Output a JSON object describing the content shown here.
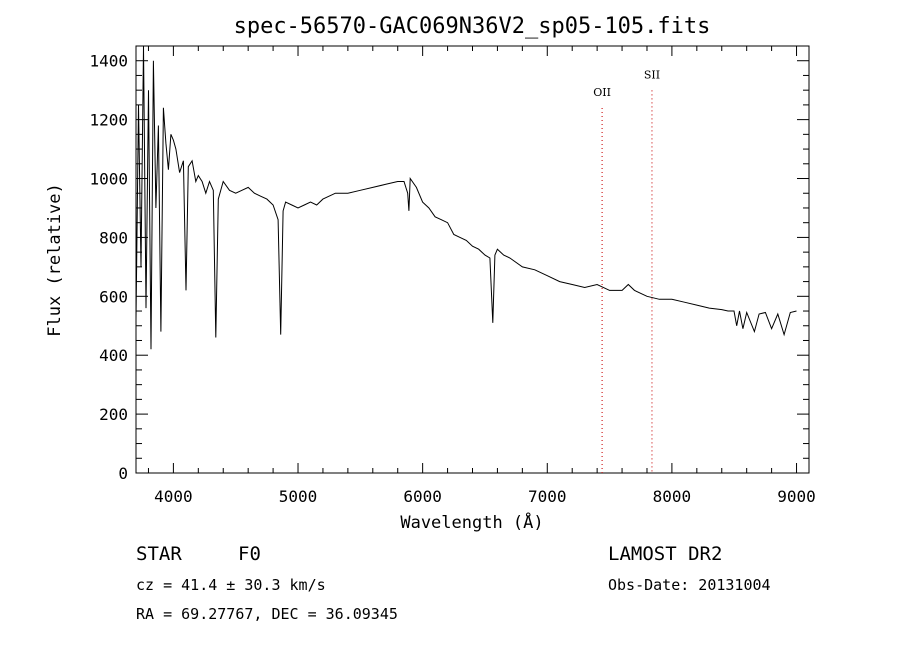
{
  "chart_data": {
    "type": "line",
    "title": "spec-56570-GAC069N36V2_sp05-105.fits",
    "xlabel": "Wavelength (Å)",
    "ylabel": "Flux (relative)",
    "xlim": [
      3700,
      9100
    ],
    "ylim": [
      0,
      1450
    ],
    "xticks": [
      4000,
      5000,
      6000,
      7000,
      8000,
      9000
    ],
    "xtick_labels": [
      "4000",
      "5000",
      "6000",
      "7000",
      "8000",
      "9000"
    ],
    "yticks": [
      0,
      200,
      400,
      600,
      800,
      1000,
      1200,
      1400
    ],
    "ytick_labels": [
      "0",
      "200",
      "400",
      "600",
      "800",
      "1000",
      "1200",
      "1400"
    ],
    "grid": false,
    "line_color": "#000000",
    "marker_color": "#d02020",
    "line_markers": [
      {
        "label": "OII",
        "x": 7440,
        "label_y": 1280
      },
      {
        "label": "SII",
        "x": 7840,
        "label_y": 1340
      }
    ],
    "series": [
      {
        "x": [
          3700,
          3720,
          3740,
          3760,
          3780,
          3800,
          3820,
          3840,
          3860,
          3880,
          3900,
          3920,
          3940,
          3960,
          3980,
          4000,
          4020,
          4050,
          4080,
          4101,
          4120,
          4150,
          4180,
          4200,
          4230,
          4260,
          4290,
          4320,
          4340,
          4360,
          4400,
          4450,
          4500,
          4550,
          4600,
          4650,
          4700,
          4750,
          4800,
          4840,
          4861,
          4880,
          4900,
          4950,
          5000,
          5050,
          5100,
          5150,
          5200,
          5300,
          5400,
          5500,
          5600,
          5700,
          5800,
          5850,
          5880,
          5890,
          5900,
          5950,
          6000,
          6050,
          6100,
          6150,
          6200,
          6250,
          6300,
          6350,
          6400,
          6450,
          6500,
          6540,
          6563,
          6580,
          6600,
          6650,
          6700,
          6800,
          6900,
          7000,
          7100,
          7200,
          7300,
          7400,
          7500,
          7600,
          7650,
          7700,
          7800,
          7900,
          8000,
          8100,
          8200,
          8300,
          8400,
          8450,
          8498,
          8520,
          8542,
          8570,
          8600,
          8662,
          8700,
          8750,
          8800,
          8850,
          8900,
          8950,
          9000
        ],
        "y": [
          520,
          1250,
          700,
          1450,
          560,
          1300,
          420,
          1400,
          900,
          1180,
          480,
          1240,
          1120,
          1030,
          1150,
          1130,
          1100,
          1020,
          1060,
          620,
          1040,
          1060,
          990,
          1010,
          990,
          950,
          990,
          960,
          460,
          930,
          990,
          960,
          950,
          960,
          970,
          950,
          940,
          930,
          910,
          860,
          470,
          890,
          920,
          910,
          900,
          910,
          920,
          910,
          930,
          950,
          950,
          960,
          970,
          980,
          990,
          990,
          950,
          890,
          1000,
          970,
          920,
          900,
          870,
          860,
          850,
          810,
          800,
          790,
          770,
          760,
          740,
          730,
          510,
          740,
          760,
          740,
          730,
          700,
          690,
          670,
          650,
          640,
          630,
          640,
          620,
          620,
          640,
          620,
          600,
          590,
          590,
          580,
          570,
          560,
          555,
          550,
          550,
          500,
          550,
          490,
          545,
          480,
          540,
          545,
          490,
          540,
          470,
          545,
          550
        ]
      }
    ]
  },
  "footer": {
    "object_class": "STAR",
    "subclass": "F0",
    "cz": "cz = 41.4 ± 30.3 km/s",
    "coords": "RA =  69.27767, DEC =  36.09345",
    "survey": "LAMOST DR2",
    "obs_date": "Obs-Date: 20131004"
  }
}
